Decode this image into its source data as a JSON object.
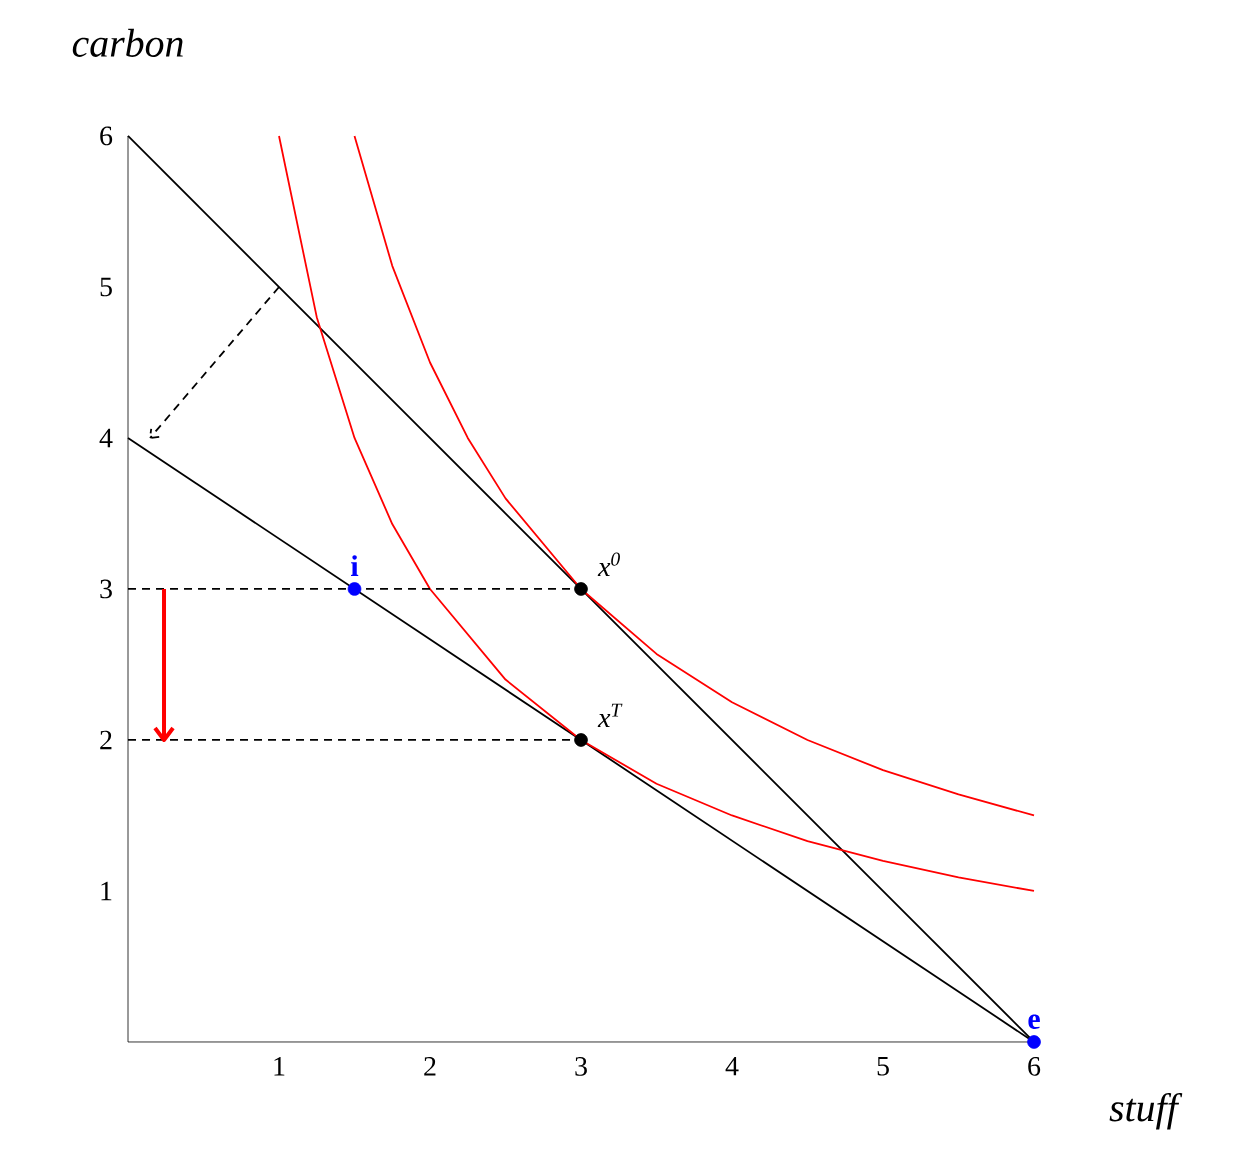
{
  "chart_data": {
    "type": "line",
    "xlabel": "stuff",
    "ylabel": "carbon",
    "xlim": [
      0,
      6
    ],
    "ylim": [
      0,
      6
    ],
    "xticks": [
      1,
      2,
      3,
      4,
      5,
      6
    ],
    "yticks": [
      1,
      2,
      3,
      4,
      5,
      6
    ],
    "series": [
      {
        "color": "#000000",
        "x": [
          0,
          6
        ],
        "values": [
          6,
          0
        ]
      },
      {
        "color": "#000000",
        "x": [
          0,
          6
        ],
        "values": [
          4,
          0
        ]
      },
      {
        "color": "#ff0000",
        "x": [
          1.5,
          1.75,
          2,
          2.25,
          2.5,
          3,
          3.5,
          4,
          4.5,
          5,
          5.5,
          6
        ],
        "values": [
          6,
          5.14,
          4.5,
          4,
          3.6,
          3,
          2.57,
          2.25,
          2,
          1.8,
          1.64,
          1.5
        ]
      },
      {
        "color": "#ff0000",
        "x": [
          1,
          1.25,
          1.5,
          1.75,
          2,
          2.5,
          3,
          3.5,
          4,
          4.5,
          5,
          5.5,
          6
        ],
        "values": [
          6,
          4.8,
          4,
          3.43,
          3,
          2.4,
          2,
          1.71,
          1.5,
          1.33,
          1.2,
          1.09,
          1
        ]
      },
      {
        "color": "#000000",
        "line_style": "dashed",
        "x": [
          0,
          3
        ],
        "values": [
          3,
          3
        ]
      },
      {
        "color": "#000000",
        "line_style": "dashed",
        "x": [
          0,
          3
        ],
        "values": [
          2,
          2
        ]
      },
      {
        "type": "scatter",
        "name": "x$^{0}$",
        "color": "#000000",
        "x": [
          3
        ],
        "values": [
          3
        ]
      },
      {
        "type": "scatter",
        "name": "x$^{T}$",
        "color": "#000000",
        "x": [
          3
        ],
        "values": [
          2
        ]
      },
      {
        "type": "scatter",
        "name": "**i**",
        "color": "#0000ff",
        "x": [
          1.5
        ],
        "values": [
          3
        ]
      },
      {
        "type": "scatter",
        "name": "**e**",
        "color": "#0000ff",
        "x": [
          6
        ],
        "values": [
          0
        ]
      }
    ]
  }
}
